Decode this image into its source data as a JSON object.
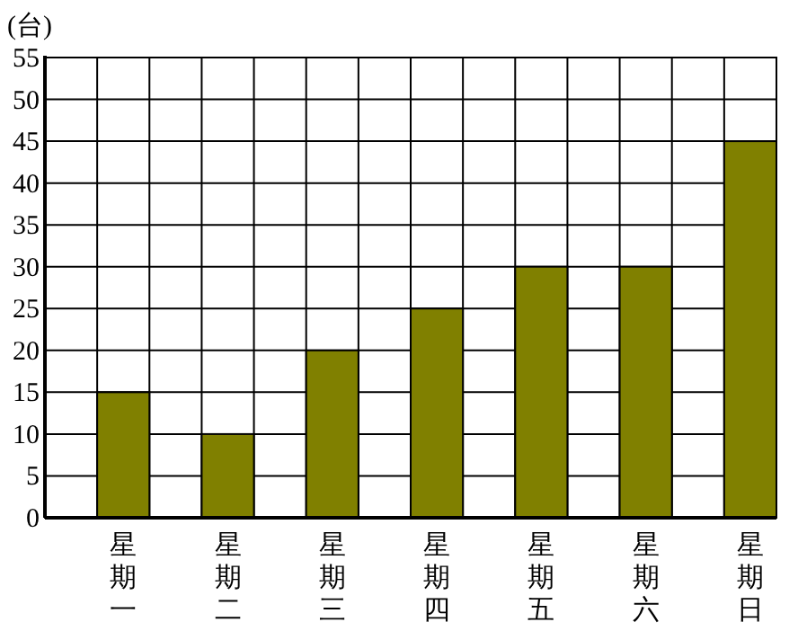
{
  "chart_data": {
    "type": "bar",
    "ylabel": "(台)",
    "categories": [
      "星期一",
      "星期二",
      "星期三",
      "星期四",
      "星期五",
      "星期六",
      "星期日"
    ],
    "values": [
      15,
      10,
      20,
      25,
      30,
      30,
      45
    ],
    "color": "#808000",
    "ylim": [
      0,
      55
    ],
    "yticks": [
      0,
      5,
      10,
      15,
      20,
      25,
      30,
      35,
      40,
      45,
      50,
      55
    ],
    "grid": true
  }
}
